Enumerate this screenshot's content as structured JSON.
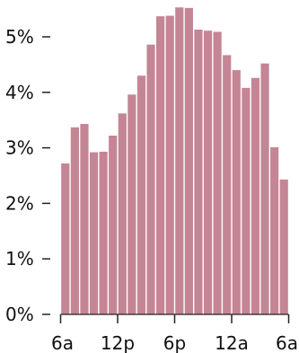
{
  "chart_data": {
    "type": "bar",
    "title": "",
    "xlabel": "",
    "ylabel": "",
    "ylim": [
      0,
      5.6
    ],
    "y_ticks": [
      {
        "value": 0,
        "label": "0%"
      },
      {
        "value": 1,
        "label": "1%"
      },
      {
        "value": 2,
        "label": "2%"
      },
      {
        "value": 3,
        "label": "3%"
      },
      {
        "value": 4,
        "label": "4%"
      },
      {
        "value": 5,
        "label": "5%"
      }
    ],
    "x_ticks": [
      {
        "index": 0,
        "label": "6a"
      },
      {
        "index": 6,
        "label": "12p"
      },
      {
        "index": 12,
        "label": "6p"
      },
      {
        "index": 18,
        "label": "12a"
      },
      {
        "index": 24,
        "label": "6a"
      }
    ],
    "categories": [
      "6a",
      "7a",
      "8a",
      "9a",
      "10a",
      "11a",
      "12p",
      "1p",
      "2p",
      "3p",
      "4p",
      "5p",
      "6p",
      "7p",
      "8p",
      "9p",
      "10p",
      "11p",
      "12a",
      "1a",
      "2a",
      "3a",
      "4a",
      "5a"
    ],
    "values": [
      2.72,
      3.37,
      3.43,
      2.92,
      2.93,
      3.22,
      3.62,
      3.96,
      4.3,
      4.86,
      5.37,
      5.38,
      5.53,
      5.52,
      5.13,
      5.11,
      5.09,
      4.67,
      4.4,
      4.08,
      4.26,
      4.52,
      3.01,
      2.43
    ],
    "grid": false,
    "bar_color": "#c48595"
  }
}
